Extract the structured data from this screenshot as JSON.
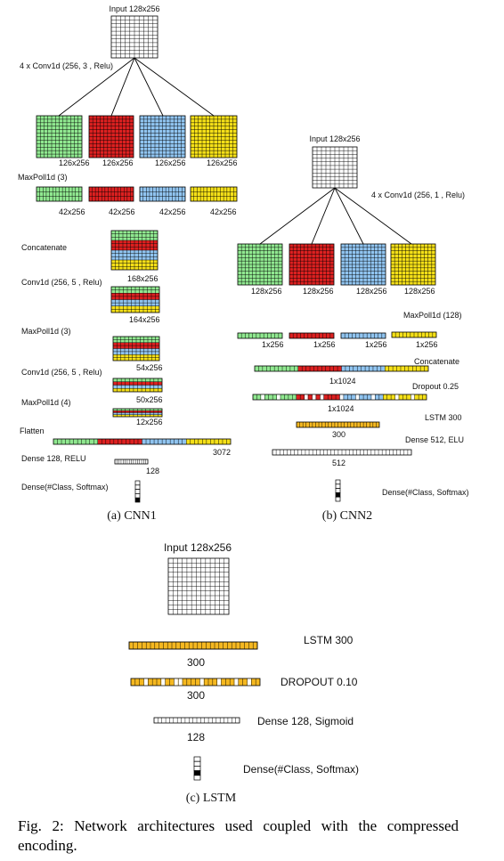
{
  "colors": {
    "green": "#90e890",
    "red": "#dd2020",
    "blue": "#90c4f0",
    "yellow": "#f5e018",
    "orange": "#f5b820",
    "grid": "#000000"
  },
  "cnn1": {
    "input": "Input 128x256",
    "conv_label": "4 x Conv1d (256, 3 , Relu)",
    "conv_dims": [
      "126x256",
      "126x256",
      "126x256",
      "126x256"
    ],
    "maxpool_label": "MaxPoll1d (3)",
    "maxpool_dims": [
      "42x256",
      "42x256",
      "42x256",
      "42x256"
    ],
    "concat_label": "Concatenate",
    "concat_dim": "168x256",
    "conv2_label": "Conv1d (256, 5 , Relu)",
    "conv2_dim": "164x256",
    "maxpool2_label": "MaxPoll1d (3)",
    "maxpool2_dim": "54x256",
    "conv3_label": "Conv1d (256, 5 , Relu)",
    "conv3_dim": "50x256",
    "maxpool3_label": "MaxPoll1d (4)",
    "maxpool3_dim": "12x256",
    "flatten_label": "Flatten",
    "flatten_dim": "3072",
    "dense_label": "Dense 128, RELU",
    "dense_dim": "128",
    "out_label": "Dense(#Class, Softmax)",
    "caption": "(a) CNN1"
  },
  "cnn2": {
    "input": "Input 128x256",
    "conv_label": "4 x Conv1d (256, 1 , Relu)",
    "conv_dims": [
      "128x256",
      "128x256",
      "128x256",
      "128x256"
    ],
    "maxpool_label": "MaxPoll1d (128)",
    "maxpool_dims": [
      "1x256",
      "1x256",
      "1x256",
      "1x256"
    ],
    "concat_label": "Concatenate",
    "concat_dim": "1x1024",
    "dropout_label": "Dropout 0.25",
    "dropout_dim": "1x1024",
    "lstm_label": "LSTM 300",
    "lstm_dim": "300",
    "dense_label": "Dense 512, ELU",
    "dense_dim": "512",
    "out_label": "Dense(#Class, Softmax)",
    "caption": "(b) CNN2"
  },
  "lstm": {
    "input": "Input 128x256",
    "lstm_label": "LSTM 300",
    "lstm_dim": "300",
    "dropout_label": "DROPOUT 0.10",
    "dropout_dim": "300",
    "dense_label": "Dense 128, Sigmoid",
    "dense_dim": "128",
    "out_label": "Dense(#Class, Softmax)",
    "caption": "(c) LSTM"
  },
  "figure_caption": "Fig. 2: Network architectures used coupled with the compressed encoding."
}
